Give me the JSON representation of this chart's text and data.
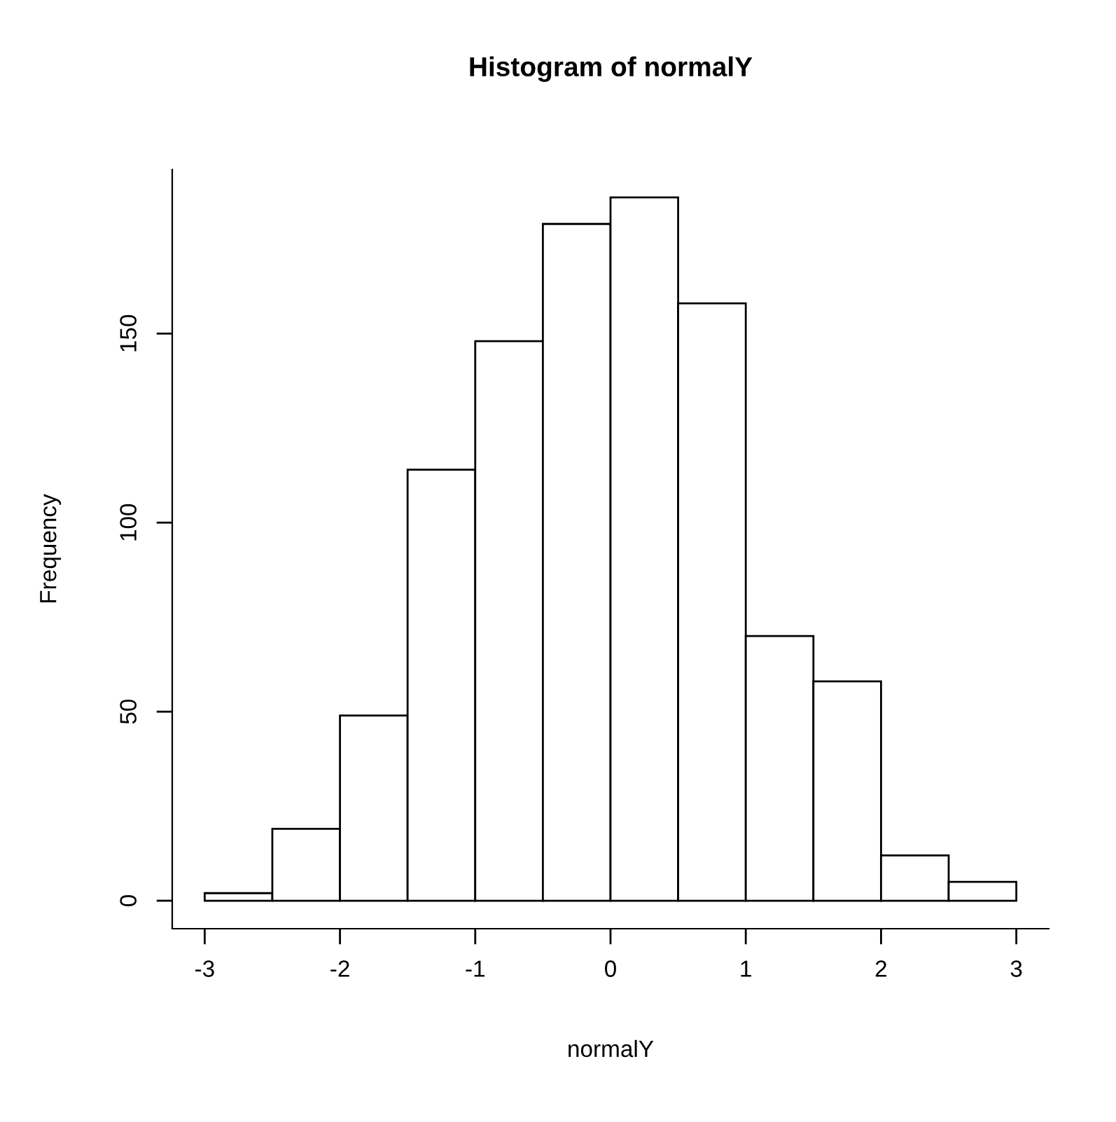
{
  "chart_data": {
    "type": "histogram",
    "title": "Histogram of normalY",
    "xlabel": "normalY",
    "ylabel": "Frequency",
    "bins": [
      -3,
      -2.5,
      -2,
      -1.5,
      -1,
      -0.5,
      0,
      0.5,
      1,
      1.5,
      2,
      2.5,
      3
    ],
    "values": [
      2,
      19,
      49,
      114,
      148,
      179,
      186,
      158,
      70,
      58,
      12,
      5
    ],
    "color": "#ffffff",
    "xlim": [
      -3.24,
      3.24
    ],
    "ylim": [
      -7.4,
      193.4
    ],
    "xticks": [
      -3,
      -2,
      -1,
      0,
      1,
      2,
      3
    ],
    "yticks": [
      0,
      50,
      100,
      150
    ],
    "grid": false
  }
}
